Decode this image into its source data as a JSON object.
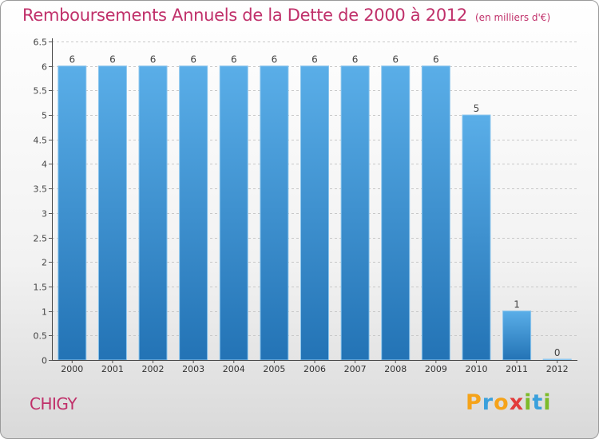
{
  "page": {
    "title": "Remboursements Annuels de la Dette de 2000 à 2012",
    "subtitle": "(en milliers d'€)",
    "commune": "CHIGY",
    "brand": [
      "P",
      "r",
      "o",
      "x",
      "i",
      "t",
      "i"
    ]
  },
  "colors": {
    "title": "#c0306a",
    "bar_top": "#5aaee8",
    "bar_bottom": "#2373b5",
    "grid": "#c8c8c8"
  },
  "chart_data": {
    "type": "bar",
    "categories": [
      "2000",
      "2001",
      "2002",
      "2003",
      "2004",
      "2005",
      "2006",
      "2007",
      "2008",
      "2009",
      "2010",
      "2011",
      "2012"
    ],
    "values": [
      6,
      6,
      6,
      6,
      6,
      6,
      6,
      6,
      6,
      6,
      5,
      1,
      0
    ],
    "data_labels": [
      "6",
      "6",
      "6",
      "6",
      "6",
      "6",
      "6",
      "6",
      "6",
      "6",
      "5",
      "1",
      "0"
    ],
    "y_ticks": [
      0,
      0.5,
      1,
      1.5,
      2,
      2.5,
      3,
      3.5,
      4,
      4.5,
      5,
      5.5,
      6,
      6.5
    ],
    "y_tick_labels": [
      "0",
      "0.5",
      "1",
      "1.5",
      "2",
      "2.5",
      "3",
      "3.5",
      "4",
      "4.5",
      "5",
      "5.5",
      "6",
      "6.5"
    ],
    "ylim": [
      0,
      6.5
    ],
    "grid": true,
    "title": "Remboursements Annuels de la Dette de 2000 à 2012",
    "xlabel": "",
    "ylabel": ""
  }
}
